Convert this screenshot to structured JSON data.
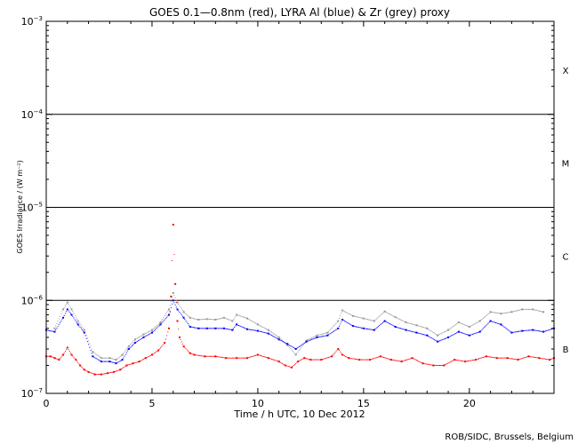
{
  "chart_data": {
    "type": "scatter",
    "title": "GOES 0.1—0.8nm (red), LYRA Al (blue) & Zr (grey) proxy",
    "xlabel": "Time / h UTC, 10 Dec 2012",
    "ylabel": "GOES Irradiance / (W m⁻²)",
    "xlim": [
      0,
      24
    ],
    "ylim": [
      1e-07,
      0.001
    ],
    "y_scale": "log",
    "x_ticks": [
      {
        "value": 0,
        "label": "0"
      },
      {
        "value": 5,
        "label": "5"
      },
      {
        "value": 10,
        "label": "10"
      },
      {
        "value": 15,
        "label": "15"
      },
      {
        "value": 20,
        "label": "20"
      }
    ],
    "y_ticks": [
      {
        "value": 1e-07,
        "mantissa": "10",
        "exp": "−7"
      },
      {
        "value": 1e-06,
        "mantissa": "10",
        "exp": "−6"
      },
      {
        "value": 1e-05,
        "mantissa": "10",
        "exp": "−5"
      },
      {
        "value": 0.0001,
        "mantissa": "10",
        "exp": "−4"
      },
      {
        "value": 0.001,
        "mantissa": "10",
        "exp": "−3"
      }
    ],
    "class_lines": [
      1e-06,
      1e-05,
      0.0001
    ],
    "flare_classes": [
      {
        "label": "X",
        "value": 0.0003
      },
      {
        "label": "M",
        "value": 3e-05
      },
      {
        "label": "C",
        "value": 3e-06
      },
      {
        "label": "B",
        "value": 3e-07
      }
    ],
    "series": [
      {
        "color": "#ff0000",
        "x": [
          0,
          0.2,
          0.4,
          0.6,
          0.8,
          1.0,
          1.2,
          1.4,
          1.6,
          1.8,
          2.0,
          2.3,
          2.6,
          2.9,
          3.2,
          3.5,
          3.8,
          4.1,
          4.4,
          4.7,
          5.0,
          5.3,
          5.6,
          5.8,
          5.9,
          6.0,
          6.1,
          6.2,
          6.3,
          6.5,
          6.8,
          7.0,
          7.5,
          8.0,
          8.5,
          9.0,
          9.5,
          10.0,
          10.5,
          11.0,
          11.3,
          11.6,
          11.9,
          12.2,
          12.5,
          13.0,
          13.5,
          13.8,
          14.0,
          14.3,
          14.8,
          15.3,
          15.8,
          16.3,
          16.8,
          17.3,
          17.8,
          18.3,
          18.8,
          19.3,
          19.8,
          20.3,
          20.8,
          21.3,
          21.8,
          22.3,
          22.8,
          23.3,
          23.8,
          24.0
        ],
        "values": [
          2.5e-07,
          2.5e-07,
          2.4e-07,
          2.3e-07,
          2.6e-07,
          3.1e-07,
          2.6e-07,
          2.3e-07,
          2e-07,
          1.8e-07,
          1.7e-07,
          1.6e-07,
          1.6e-07,
          1.65e-07,
          1.7e-07,
          1.8e-07,
          2e-07,
          2.1e-07,
          2.2e-07,
          2.4e-07,
          2.6e-07,
          2.9e-07,
          3.5e-07,
          5e-07,
          1.1e-06,
          6.5e-06,
          1.5e-06,
          6e-07,
          4e-07,
          3.2e-07,
          2.7e-07,
          2.6e-07,
          2.5e-07,
          2.5e-07,
          2.4e-07,
          2.4e-07,
          2.4e-07,
          2.6e-07,
          2.4e-07,
          2.2e-07,
          2e-07,
          1.9e-07,
          2.2e-07,
          2.4e-07,
          2.3e-07,
          2.3e-07,
          2.5e-07,
          3e-07,
          2.6e-07,
          2.4e-07,
          2.3e-07,
          2.3e-07,
          2.5e-07,
          2.3e-07,
          2.2e-07,
          2.4e-07,
          2.1e-07,
          2e-07,
          2e-07,
          2.3e-07,
          2.2e-07,
          2.3e-07,
          2.5e-07,
          2.4e-07,
          2.4e-07,
          2.3e-07,
          2.5e-07,
          2.4e-07,
          2.3e-07,
          2.4e-07
        ]
      },
      {
        "color": "#0000ff",
        "x": [
          0,
          0.4,
          0.8,
          1.0,
          1.2,
          1.5,
          1.8,
          2.2,
          2.6,
          3.0,
          3.3,
          3.6,
          3.9,
          4.2,
          4.6,
          5.0,
          5.4,
          5.8,
          6.0,
          6.2,
          6.5,
          6.8,
          7.2,
          7.6,
          8.0,
          8.4,
          8.8,
          9.0,
          9.5,
          10.0,
          10.5,
          11.0,
          11.4,
          11.8,
          12.3,
          12.8,
          13.3,
          13.8,
          14.0,
          14.5,
          15.0,
          15.5,
          16.0,
          16.5,
          17.0,
          17.5,
          18.0,
          18.5,
          19.0,
          19.5,
          20.0,
          20.5,
          21.0,
          21.5,
          22.0,
          22.5,
          23.0,
          23.5,
          24.0
        ],
        "values": [
          4.8e-07,
          4.6e-07,
          6.5e-07,
          8e-07,
          7e-07,
          5.5e-07,
          4.5e-07,
          2.5e-07,
          2.2e-07,
          2.2e-07,
          2.1e-07,
          2.3e-07,
          3e-07,
          3.5e-07,
          4e-07,
          4.5e-07,
          5.5e-07,
          7e-07,
          1e-06,
          8e-07,
          6.5e-07,
          5.2e-07,
          5e-07,
          5e-07,
          5e-07,
          5e-07,
          4.8e-07,
          5.5e-07,
          4.9e-07,
          4.7e-07,
          4.4e-07,
          3.8e-07,
          3.4e-07,
          3e-07,
          3.6e-07,
          4e-07,
          4.2e-07,
          5e-07,
          6.2e-07,
          5.3e-07,
          5e-07,
          4.8e-07,
          6e-07,
          5.2e-07,
          4.8e-07,
          4.5e-07,
          4.2e-07,
          3.6e-07,
          4e-07,
          4.6e-07,
          4.2e-07,
          4.6e-07,
          6e-07,
          5.5e-07,
          4.5e-07,
          4.7e-07,
          4.8e-07,
          4.6e-07,
          5e-07
        ]
      },
      {
        "color": "#999999",
        "x": [
          0.4,
          0.8,
          1.0,
          1.2,
          1.5,
          1.8,
          2.2,
          2.6,
          3.0,
          3.3,
          3.6,
          3.9,
          4.2,
          4.6,
          5.0,
          5.4,
          5.8,
          6.0,
          6.2,
          6.5,
          6.8,
          7.2,
          7.6,
          8.0,
          8.4,
          8.8,
          9.0,
          9.5,
          10.0,
          10.5,
          11.0,
          11.4,
          11.8,
          12.3,
          12.8,
          13.3,
          13.8,
          14.0,
          14.5,
          15.0,
          15.5,
          16.0,
          16.5,
          17.0,
          17.5,
          18.0,
          18.5,
          19.0,
          19.5,
          20.0,
          20.5,
          21.0,
          21.5,
          22.0,
          22.5,
          23.0,
          23.5
        ],
        "values": [
          5e-07,
          8e-07,
          9.5e-07,
          8e-07,
          6e-07,
          4.8e-07,
          2.8e-07,
          2.4e-07,
          2.4e-07,
          2.3e-07,
          2.6e-07,
          3.2e-07,
          3.8e-07,
          4.3e-07,
          4.8e-07,
          5.8e-07,
          8e-07,
          1.2e-06,
          9.5e-07,
          7.5e-07,
          6.5e-07,
          6.2e-07,
          6.3e-07,
          6.2e-07,
          6.5e-07,
          6e-07,
          7e-07,
          6.4e-07,
          5.5e-07,
          4.8e-07,
          4e-07,
          3.3e-07,
          2.6e-07,
          3.7e-07,
          4.2e-07,
          4.5e-07,
          6e-07,
          7.8e-07,
          6.8e-07,
          6.4e-07,
          6e-07,
          7.6e-07,
          6.6e-07,
          5.8e-07,
          5.4e-07,
          5e-07,
          4.2e-07,
          4.8e-07,
          5.8e-07,
          5.2e-07,
          6e-07,
          7.5e-07,
          7.2e-07,
          7.5e-07,
          8e-07,
          8e-07,
          7.5e-07
        ]
      }
    ]
  },
  "footer": {
    "credit": "ROB/SIDC, Brussels, Belgium"
  }
}
